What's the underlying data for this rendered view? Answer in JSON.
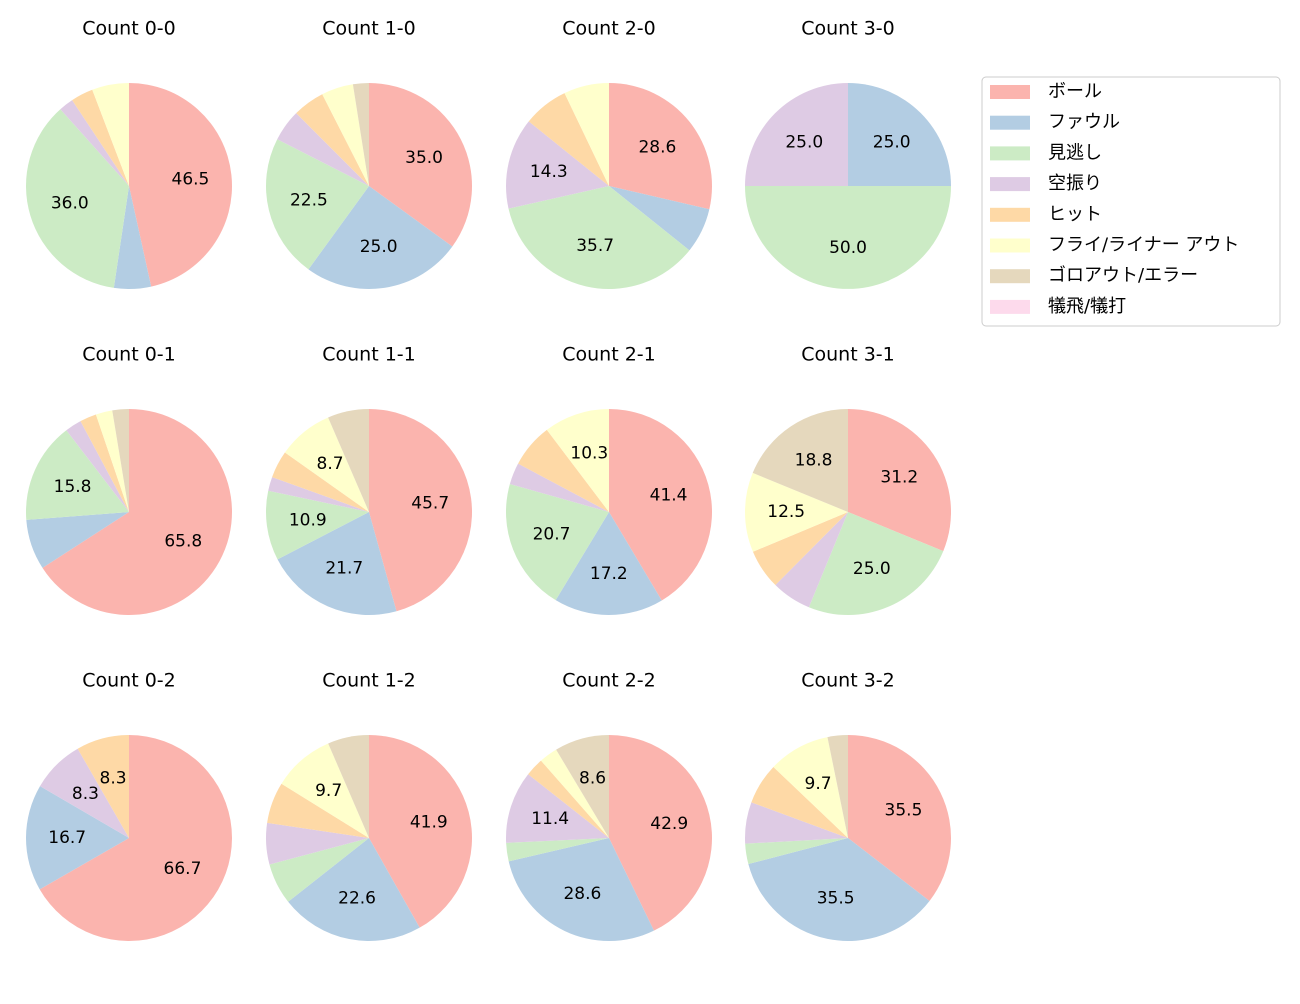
{
  "legend": {
    "labels": [
      "ボール",
      "ファウル",
      "見逃し",
      "空振り",
      "ヒット",
      "フライ/ライナー アウト",
      "ゴロアウト/エラー",
      "犠飛/犠打"
    ],
    "colors": [
      "#fbb4ae",
      "#b3cde3",
      "#ccebc5",
      "#decbe4",
      "#fed9a6",
      "#ffffcc",
      "#e5d8bd",
      "#fddaec"
    ]
  },
  "chart_data": [
    {
      "type": "pie",
      "title": "Count 0-0",
      "values": [
        46.5,
        5.8,
        36,
        2.3,
        3.5,
        5.8,
        0,
        0
      ],
      "value_labels": [
        "46.5",
        null,
        "36.0",
        null,
        null,
        null,
        null,
        null
      ]
    },
    {
      "type": "pie",
      "title": "Count 1-0",
      "values": [
        35,
        25,
        22.5,
        5,
        5,
        5,
        2.5,
        0
      ],
      "value_labels": [
        "35.0",
        "25.0",
        "22.5",
        null,
        null,
        null,
        null,
        null
      ]
    },
    {
      "type": "pie",
      "title": "Count 2-0",
      "values": [
        28.6,
        7.1,
        35.7,
        14.3,
        7.1,
        7.1,
        0,
        0
      ],
      "value_labels": [
        "28.6",
        null,
        "35.7",
        "14.3",
        null,
        null,
        null,
        null
      ]
    },
    {
      "type": "pie",
      "title": "Count 3-0",
      "values": [
        0,
        25,
        50,
        25,
        0,
        0,
        0,
        0
      ],
      "value_labels": [
        null,
        "25.0",
        "50.0",
        "25.0",
        null,
        null,
        null,
        null
      ]
    },
    {
      "type": "pie",
      "title": "Count 0-1",
      "values": [
        65.8,
        7.9,
        15.8,
        2.6,
        2.6,
        2.6,
        2.6,
        0
      ],
      "value_labels": [
        "65.8",
        null,
        "15.8",
        null,
        null,
        null,
        null,
        null
      ]
    },
    {
      "type": "pie",
      "title": "Count 1-1",
      "values": [
        45.7,
        21.7,
        10.9,
        2.2,
        4.3,
        8.7,
        6.5,
        0
      ],
      "value_labels": [
        "45.7",
        "21.7",
        "10.9",
        null,
        null,
        "8.7",
        null,
        null
      ]
    },
    {
      "type": "pie",
      "title": "Count 2-1",
      "values": [
        41.4,
        17.2,
        20.7,
        3.4,
        6.9,
        10.3,
        0,
        0
      ],
      "value_labels": [
        "41.4",
        "17.2",
        "20.7",
        null,
        null,
        "10.3",
        null,
        null
      ]
    },
    {
      "type": "pie",
      "title": "Count 3-1",
      "values": [
        31.2,
        0,
        25,
        6.25,
        6.25,
        12.5,
        18.8,
        0
      ],
      "value_labels": [
        "31.2",
        null,
        "25.0",
        null,
        null,
        "12.5",
        "18.8",
        null
      ]
    },
    {
      "type": "pie",
      "title": "Count 0-2",
      "values": [
        66.7,
        16.7,
        0,
        8.3,
        8.3,
        0,
        0,
        0
      ],
      "value_labels": [
        "66.7",
        "16.7",
        null,
        "8.3",
        "8.3",
        null,
        null,
        null
      ]
    },
    {
      "type": "pie",
      "title": "Count 1-2",
      "values": [
        41.9,
        22.6,
        6.5,
        6.5,
        6.5,
        9.7,
        6.5,
        0
      ],
      "value_labels": [
        "41.9",
        "22.6",
        null,
        null,
        null,
        "9.7",
        null,
        null
      ]
    },
    {
      "type": "pie",
      "title": "Count 2-2",
      "values": [
        42.9,
        28.6,
        2.9,
        11.4,
        2.9,
        2.9,
        8.6,
        0
      ],
      "value_labels": [
        "42.9",
        "28.6",
        null,
        "11.4",
        null,
        null,
        "8.6",
        null
      ]
    },
    {
      "type": "pie",
      "title": "Count 3-2",
      "values": [
        35.5,
        35.5,
        3.2,
        6.5,
        6.5,
        9.7,
        3.2,
        0
      ],
      "value_labels": [
        "35.5",
        "35.5",
        null,
        null,
        null,
        "9.7",
        null,
        null
      ]
    }
  ]
}
